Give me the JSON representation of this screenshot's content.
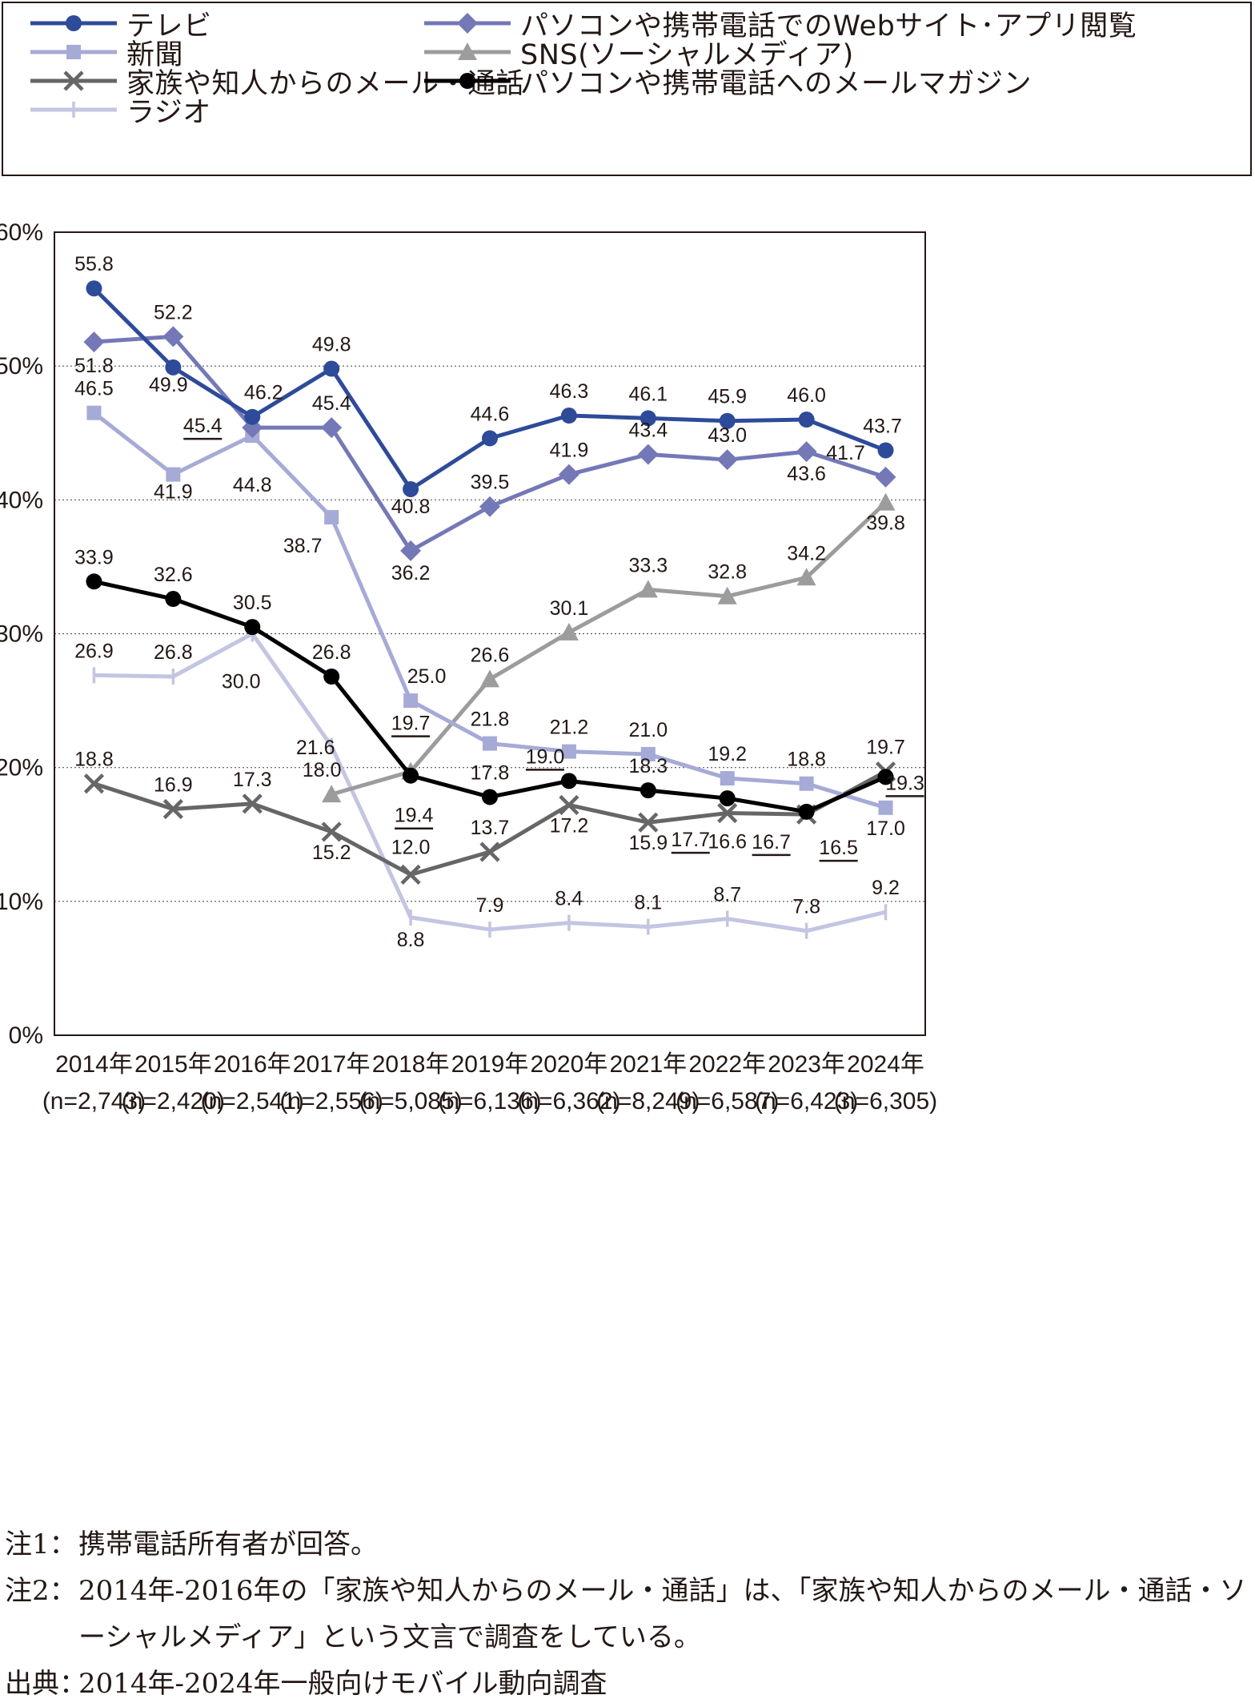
{
  "chart_data": {
    "type": "line",
    "categories": [
      {
        "year": "2014年",
        "n": "(n=2,743)"
      },
      {
        "year": "2015年",
        "n": "(n=2,420)"
      },
      {
        "year": "2016年",
        "n": "(n=2,541)"
      },
      {
        "year": "2017年",
        "n": "(n=2,556)"
      },
      {
        "year": "2018年",
        "n": "(n=5,085)"
      },
      {
        "year": "2019年",
        "n": "(n=6,136)"
      },
      {
        "year": "2020年",
        "n": "(n=6,362)"
      },
      {
        "year": "2021年",
        "n": "(n=8,249)"
      },
      {
        "year": "2022年",
        "n": "(n=6,587)"
      },
      {
        "year": "2023年",
        "n": "(n=6,423)"
      },
      {
        "year": "2024年",
        "n": "(n=6,305)"
      }
    ],
    "y_ticks": [
      "0%",
      "10%",
      "20%",
      "30%",
      "40%",
      "50%",
      "60%"
    ],
    "ylim": [
      0,
      60
    ],
    "grid": "horizontal dotted",
    "legend_position": "top",
    "series": [
      {
        "name": "テレビ",
        "color": "#2e4b99",
        "marker": "circle",
        "values": [
          55.8,
          49.9,
          46.2,
          49.8,
          40.8,
          44.6,
          46.3,
          46.1,
          45.9,
          46.0,
          43.7
        ],
        "labels": [
          "55.8",
          "49.9",
          "46.2",
          "49.8",
          "40.8",
          "44.6",
          "46.3",
          "46.1",
          "45.9",
          "46.0",
          "43.7"
        ]
      },
      {
        "name": "パソコンや携帯電話でのWebサイト･アプリ閲覧",
        "color": "#7478b6",
        "marker": "diamond",
        "values": [
          51.8,
          52.2,
          45.4,
          45.4,
          36.2,
          39.5,
          41.9,
          43.4,
          43.0,
          43.6,
          41.7
        ],
        "labels": [
          "51.8",
          "52.2",
          "45.4",
          "45.4",
          "36.2",
          "39.5",
          "41.9",
          "43.4",
          "43.0",
          "43.6",
          "41.7"
        ]
      },
      {
        "name": "新聞",
        "color": "#a6aad6",
        "marker": "square",
        "values": [
          46.5,
          41.9,
          44.8,
          38.7,
          25.0,
          21.8,
          21.2,
          21.0,
          19.2,
          18.8,
          17.0
        ],
        "labels": [
          "46.5",
          "41.9",
          "44.8",
          "38.7",
          "25.0",
          "21.8",
          "21.2",
          "21.0",
          "19.2",
          "18.8",
          "17.0"
        ]
      },
      {
        "name": "SNS(ソーシャルメディア)",
        "color": "#9c9c9c",
        "marker": "triangle",
        "values": [
          null,
          null,
          null,
          18.0,
          19.7,
          26.6,
          30.1,
          33.3,
          32.8,
          34.2,
          39.8
        ],
        "labels": [
          "",
          "",
          "",
          "18.0",
          "19.7",
          "26.6",
          "30.1",
          "33.3",
          "32.8",
          "34.2",
          "39.8"
        ]
      },
      {
        "name": "家族や知人からのメール・通話",
        "color": "#666666",
        "marker": "x",
        "values": [
          18.8,
          16.9,
          17.3,
          15.2,
          12.0,
          13.7,
          17.2,
          15.9,
          16.6,
          16.5,
          19.7
        ],
        "labels": [
          "18.8",
          "16.9",
          "17.3",
          "15.2",
          "12.0",
          "13.7",
          "17.2",
          "15.9",
          "16.6",
          "16.5",
          "19.7"
        ]
      },
      {
        "name": "パソコンや携帯電話へのメールマガジン",
        "color": "#000000",
        "marker": "circle",
        "values": [
          33.9,
          32.6,
          30.5,
          26.8,
          19.4,
          17.8,
          19.0,
          18.3,
          17.7,
          16.7,
          19.3
        ],
        "labels": [
          "33.9",
          "32.6",
          "30.5",
          "26.8",
          "19.4",
          "17.8",
          "19.0",
          "18.3",
          "17.7",
          "16.7",
          "19.3"
        ]
      },
      {
        "name": "ラジオ",
        "color": "#c3c5e2",
        "marker": "plus",
        "values": [
          26.9,
          26.8,
          30.0,
          21.6,
          8.8,
          7.9,
          8.4,
          8.1,
          8.7,
          7.8,
          9.2
        ],
        "labels": [
          "26.9",
          "26.8",
          "30.0",
          "21.6",
          "8.8",
          "7.9",
          "8.4",
          "8.1",
          "8.7",
          "7.8",
          "9.2"
        ]
      }
    ]
  },
  "notes": [
    {
      "label": "注1：",
      "text": "携帯電話所有者が回答。"
    },
    {
      "label": "注2：",
      "text": "2014年-2016年の「家族や知人からのメール・通話」は、「家族や知人からのメール・通話・ソーシャルメディア」という文言で調査をしている。"
    },
    {
      "label": "出典：",
      "text": "2014年-2024年一般向けモバイル動向調査"
    }
  ]
}
